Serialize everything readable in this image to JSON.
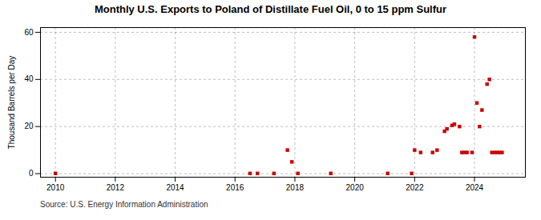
{
  "chart_data": {
    "type": "scatter",
    "title": "Monthly U.S. Exports to Poland of Distillate Fuel Oil, 0 to 15 ppm Sulfur",
    "ylabel": "Thousand Barrels per Day",
    "source": "Source: U.S. Energy Information Administration",
    "x": [
      2010.0,
      2016.5,
      2016.75,
      2017.3,
      2017.75,
      2017.9,
      2018.1,
      2019.2,
      2021.1,
      2021.9,
      2022.0,
      2022.2,
      2022.6,
      2022.75,
      2023.0,
      2023.08,
      2023.25,
      2023.33,
      2023.5,
      2023.58,
      2023.67,
      2023.75,
      2023.92,
      2024.0,
      2024.08,
      2024.17,
      2024.25,
      2024.42,
      2024.5,
      2024.58,
      2024.67,
      2024.75,
      2024.83,
      2024.92
    ],
    "values": [
      0.1,
      0.1,
      0.1,
      0.1,
      10.0,
      5.0,
      0.1,
      0.1,
      0.1,
      0.1,
      10.0,
      9.0,
      9.0,
      10.0,
      18.0,
      19.0,
      20.5,
      21.0,
      20.0,
      9.0,
      9.0,
      9.0,
      9.0,
      58.0,
      30.0,
      20.0,
      27.0,
      38.0,
      40.0,
      9.0,
      9.0,
      9.0,
      9.0,
      9.0
    ],
    "color": "#cc0000",
    "marker": "square",
    "xlim": [
      2009.5,
      2025.7
    ],
    "ylim": [
      -1.5,
      62
    ],
    "xticks": [
      2010,
      2012,
      2014,
      2016,
      2018,
      2020,
      2022,
      2024
    ],
    "yticks": [
      0,
      20,
      40,
      60
    ],
    "grid": true
  }
}
